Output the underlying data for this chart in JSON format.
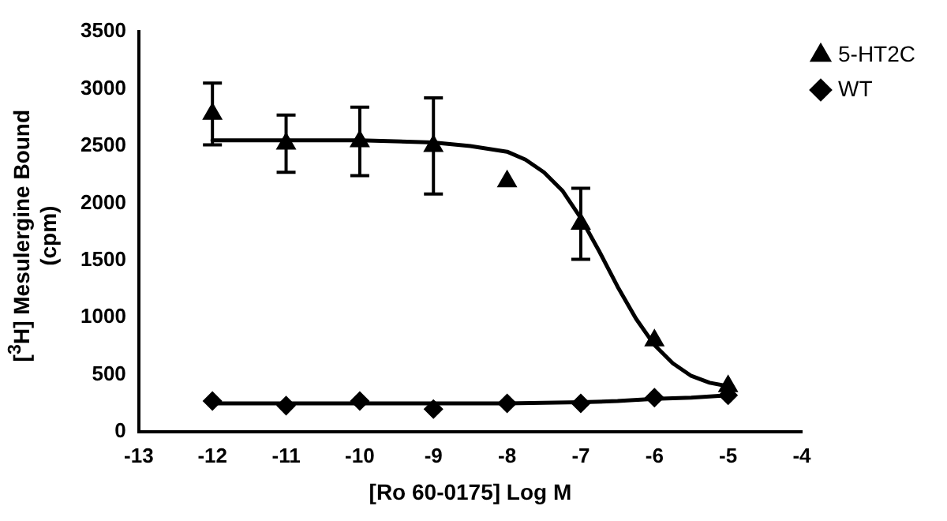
{
  "chart_data": {
    "type": "scatter",
    "xlabel": "[Ro 60-0175] Log M",
    "ylabel": "[$^{3}$H] Mesulergine Bound (cpm)",
    "xlim": [
      -13,
      -4
    ],
    "xticks": [
      -13,
      -12,
      -11,
      -10,
      -9,
      -8,
      -7,
      -6,
      -5,
      -4
    ],
    "ylim": [
      0,
      3500
    ],
    "yticks": [
      0,
      500,
      1000,
      1500,
      2000,
      2500,
      3000,
      3500
    ],
    "grid": false,
    "legend": "top right",
    "series": [
      {
        "name": "5-HT2C",
        "marker": "triangle",
        "color": "#000000",
        "x": [
          -12,
          -11,
          -10,
          -9,
          -8,
          -7,
          -6,
          -5
        ],
        "values": [
          2780,
          2520,
          2540,
          2500,
          2190,
          1820,
          800,
          400
        ],
        "errors": [
          270,
          250,
          300,
          420,
          null,
          310,
          null,
          null
        ]
      },
      {
        "name": "WT",
        "marker": "diamond",
        "color": "#000000",
        "x": [
          -12,
          -11,
          -10,
          -9,
          -8,
          -7,
          -6,
          -5
        ],
        "values": [
          270,
          230,
          270,
          200,
          250,
          250,
          300,
          320
        ]
      },
      {
        "type": "line",
        "marker": "none",
        "line_style": "solid",
        "color": "#000000",
        "x": [
          -12,
          -11,
          -10,
          -9,
          -8.5,
          -8,
          -7.75,
          -7.5,
          -7.25,
          -7,
          -6.75,
          -6.5,
          -6.25,
          -6,
          -5.75,
          -5.5,
          -5.25,
          -5
        ],
        "values": [
          2550,
          2550,
          2550,
          2530,
          2500,
          2450,
          2380,
          2270,
          2110,
          1870,
          1580,
          1270,
          990,
          760,
          600,
          490,
          430,
          400
        ]
      },
      {
        "type": "line",
        "marker": "none",
        "line_style": "solid",
        "color": "#000000",
        "x": [
          -12,
          -9,
          -8,
          -7,
          -6.5,
          -6,
          -5.5,
          -5
        ],
        "values": [
          250,
          250,
          250,
          260,
          270,
          290,
          300,
          320
        ]
      }
    ]
  }
}
